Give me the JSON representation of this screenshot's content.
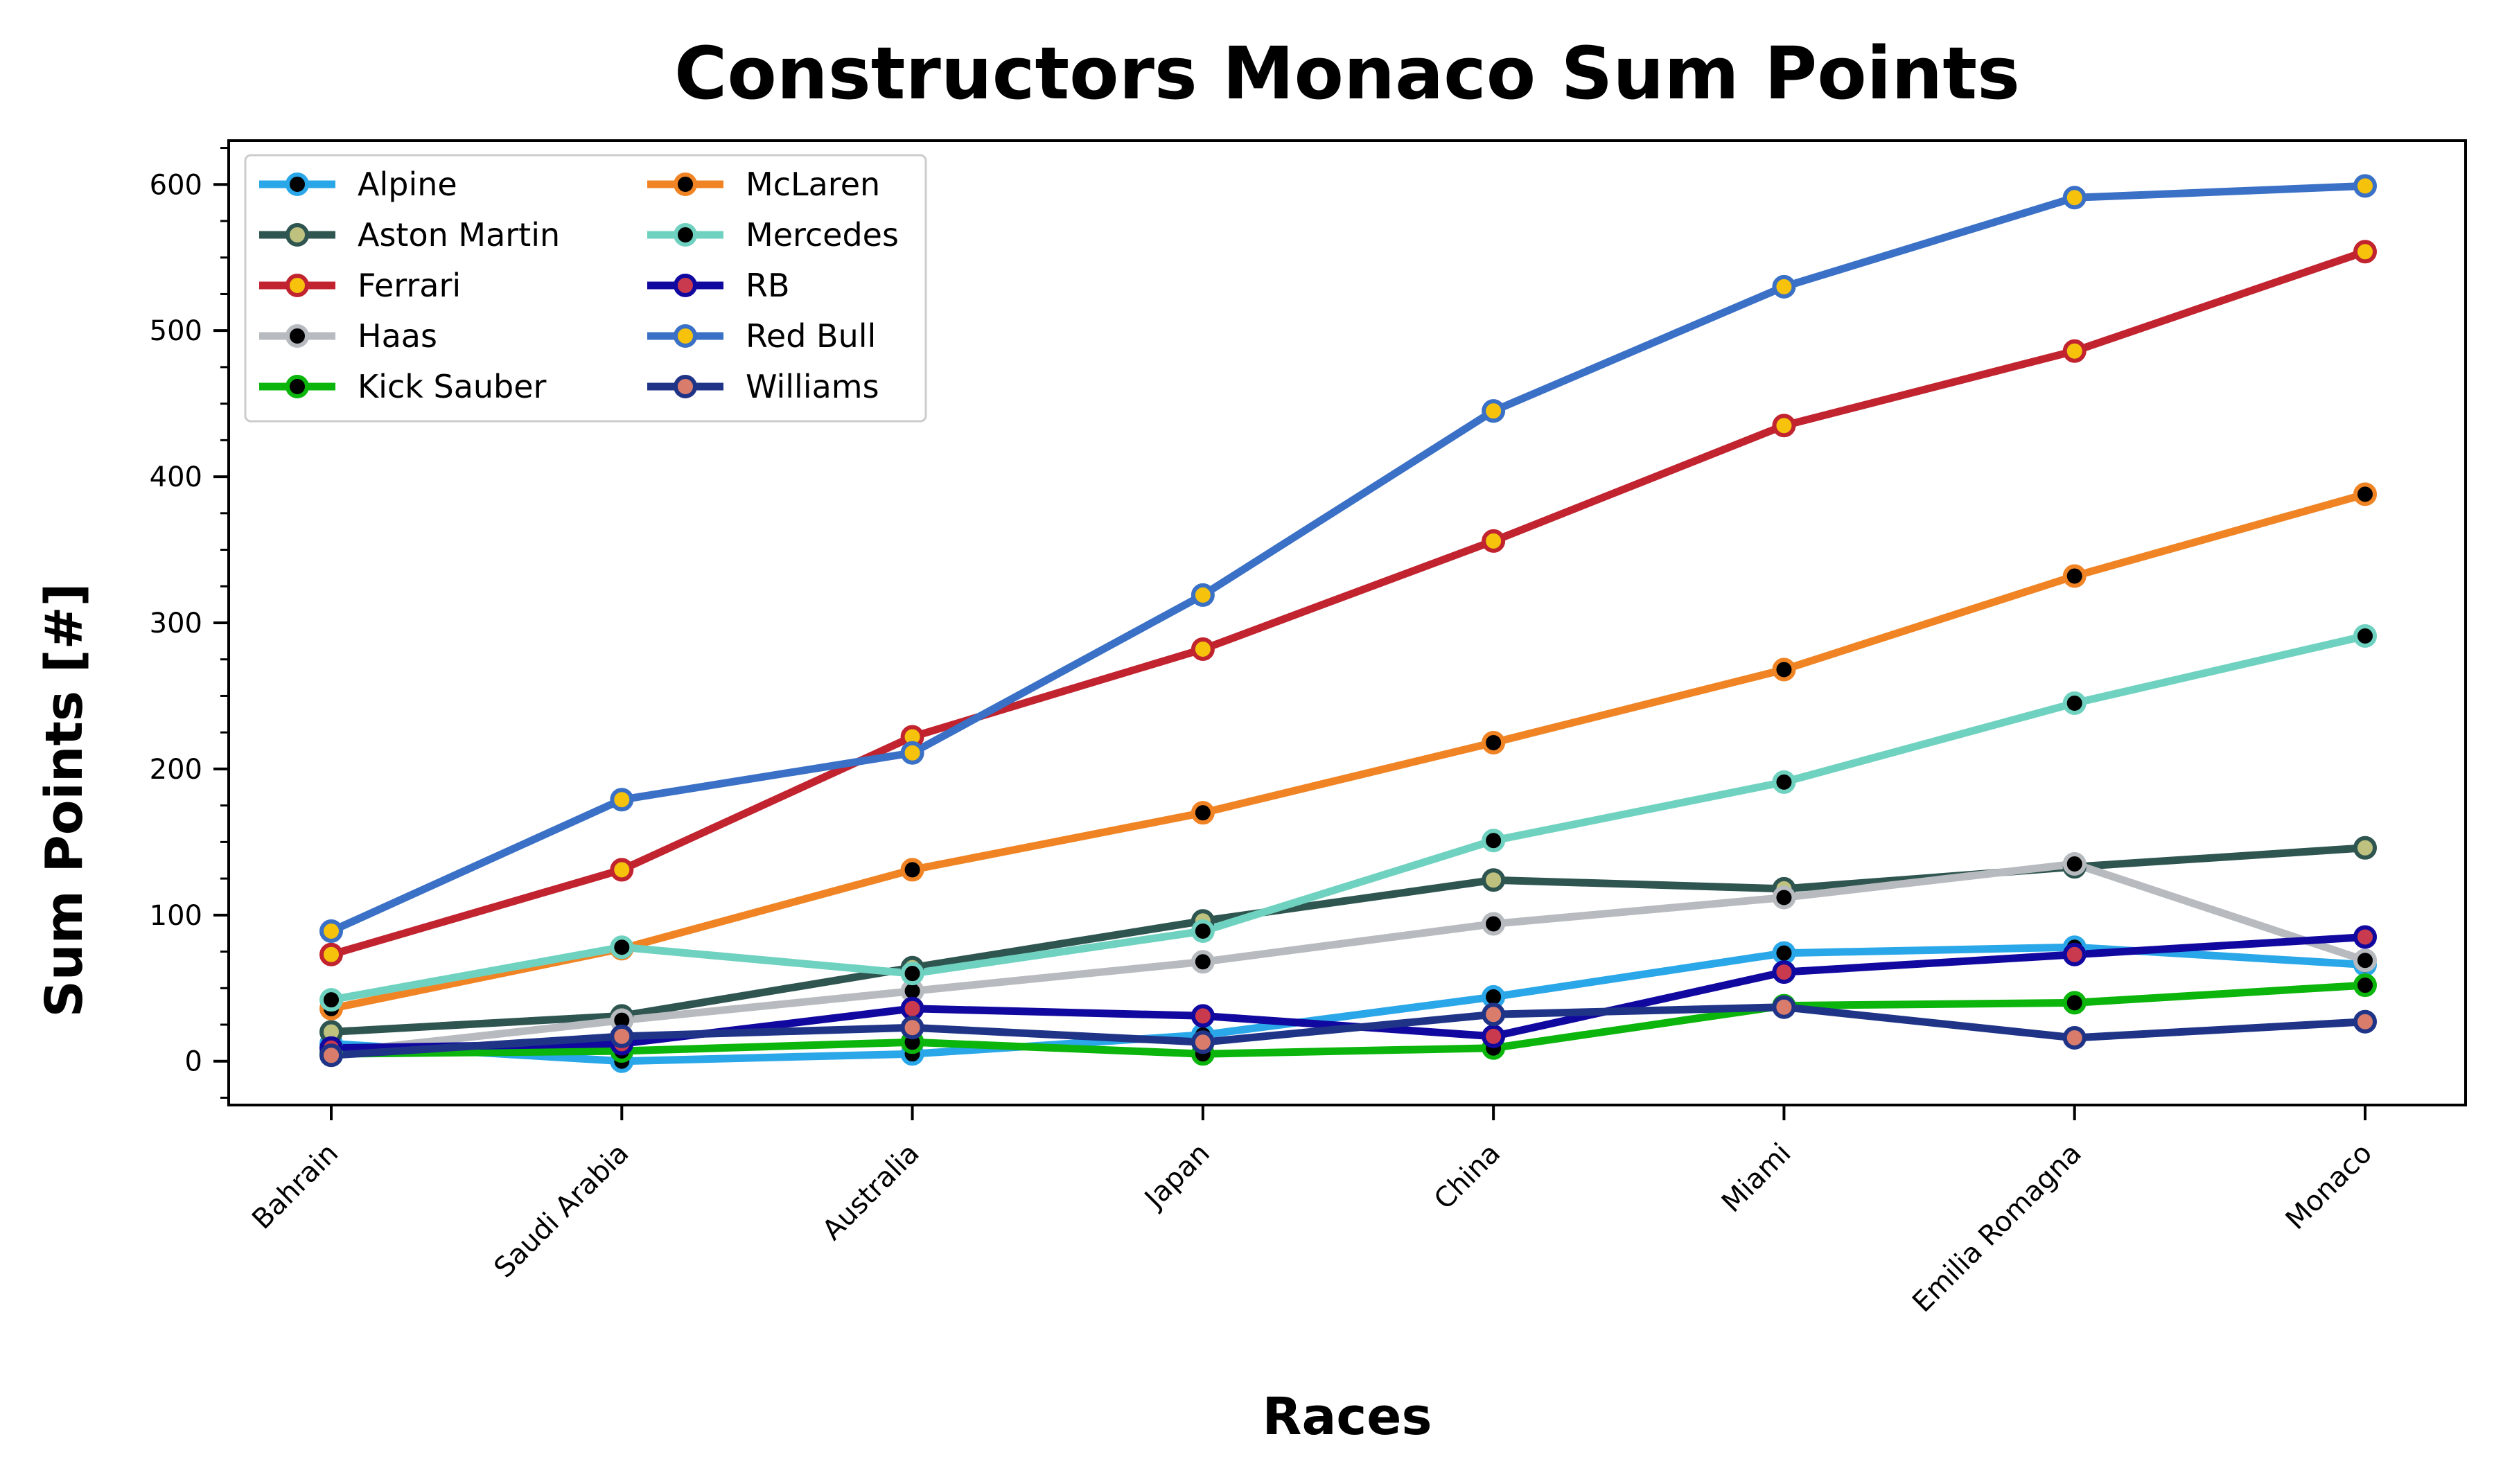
{
  "chart_data": {
    "type": "line",
    "title": "Constructors Monaco Sum Points",
    "xlabel": "Races",
    "ylabel": "Sum Points [#]",
    "categories": [
      "Bahrain",
      "Saudi Arabia",
      "Australia",
      "Japan",
      "China",
      "Miami",
      "Emilia Romagna",
      "Monaco"
    ],
    "ylim": [
      -30,
      630
    ],
    "yticks": [
      0,
      100,
      200,
      300,
      400,
      500,
      600
    ],
    "ytick_labels": [
      "0",
      "100",
      "200",
      "300",
      "400",
      "500",
      "600"
    ],
    "grid": false,
    "legend_position": "upper-left",
    "legend_columns": 2,
    "series": [
      {
        "name": "Alpine",
        "line_color": "#2aa7e8",
        "marker_edge": "#2aa7e8",
        "marker_face": "#000000",
        "values": [
          12,
          0,
          5,
          18,
          44,
          74,
          78,
          66
        ]
      },
      {
        "name": "Aston Martin",
        "line_color": "#2f5550",
        "marker_edge": "#2f5550",
        "marker_face": "#bfc27e",
        "values": [
          20,
          31,
          64,
          96,
          124,
          118,
          133,
          146
        ]
      },
      {
        "name": "Ferrari",
        "line_color": "#c1232f",
        "marker_edge": "#c1232f",
        "marker_face": "#f6c20b",
        "values": [
          73,
          131,
          222,
          282,
          356,
          435,
          486,
          554
        ]
      },
      {
        "name": "Haas",
        "line_color": "#b7babe",
        "marker_edge": "#b7babe",
        "marker_face": "#000000",
        "values": [
          6,
          28,
          48,
          68,
          94,
          112,
          135,
          69
        ]
      },
      {
        "name": "Kick Sauber",
        "line_color": "#0bb50b",
        "marker_edge": "#0bb50b",
        "marker_face": "#000000",
        "values": [
          5,
          7,
          13,
          5,
          9,
          38,
          40,
          52
        ]
      },
      {
        "name": "McLaren",
        "line_color": "#f08424",
        "marker_edge": "#f08424",
        "marker_face": "#000000",
        "values": [
          36,
          77,
          131,
          170,
          218,
          268,
          332,
          388
        ]
      },
      {
        "name": "Mercedes",
        "line_color": "#6fd2c0",
        "marker_edge": "#6fd2c0",
        "marker_face": "#000000",
        "values": [
          42,
          78,
          60,
          89,
          151,
          191,
          245,
          291
        ]
      },
      {
        "name": "RB",
        "line_color": "#1108a0",
        "marker_edge": "#1108a0",
        "marker_face": "#c93a4e",
        "values": [
          9,
          12,
          36,
          31,
          17,
          61,
          73,
          85
        ]
      },
      {
        "name": "Red Bull",
        "line_color": "#3a70c6",
        "marker_edge": "#3a70c6",
        "marker_face": "#f6c20b",
        "values": [
          89,
          179,
          211,
          319,
          445,
          530,
          591,
          599
        ]
      },
      {
        "name": "Williams",
        "line_color": "#1f3487",
        "marker_edge": "#1f3487",
        "marker_face": "#d97c6c",
        "values": [
          4,
          17,
          23,
          13,
          32,
          37,
          16,
          27
        ]
      }
    ]
  }
}
